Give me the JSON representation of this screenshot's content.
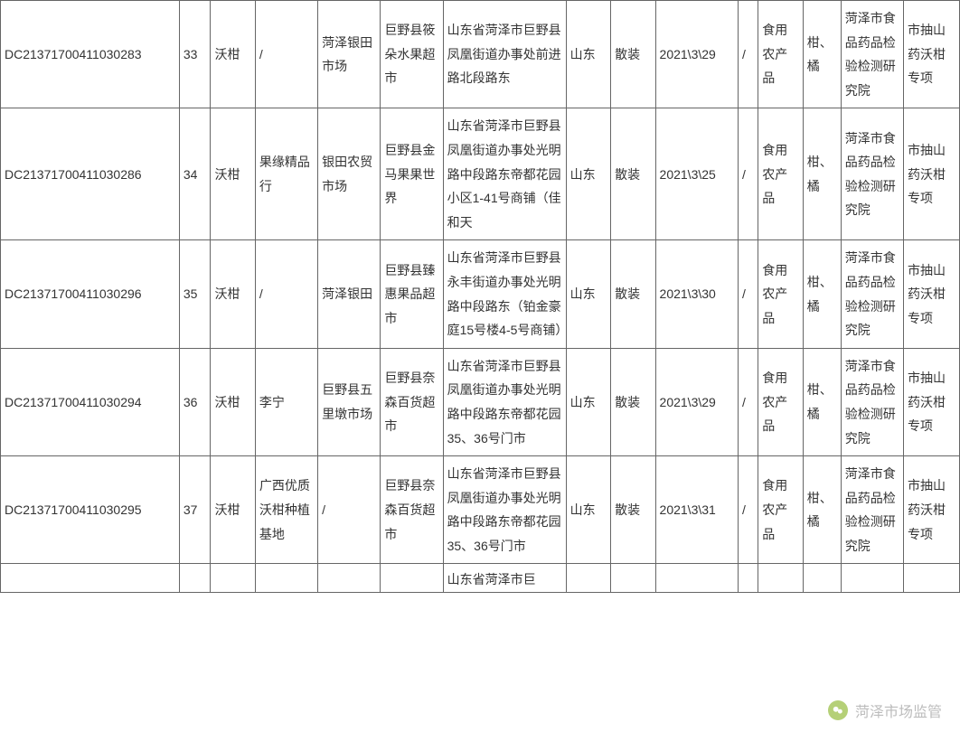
{
  "columns": [
    {
      "class": "col-0"
    },
    {
      "class": "col-1"
    },
    {
      "class": "col-2"
    },
    {
      "class": "col-3"
    },
    {
      "class": "col-4"
    },
    {
      "class": "col-5"
    },
    {
      "class": "col-6"
    },
    {
      "class": "col-7"
    },
    {
      "class": "col-8"
    },
    {
      "class": "col-9"
    },
    {
      "class": "col-10"
    },
    {
      "class": "col-11"
    },
    {
      "class": "col-12"
    },
    {
      "class": "col-13"
    },
    {
      "class": "col-14"
    }
  ],
  "rows": [
    {
      "id": "DC21371700411030283",
      "seq": "33",
      "product": "沃柑",
      "supplier": "/",
      "market": "菏泽银田市场",
      "store": "巨野县筱朵水果超市",
      "address": "山东省菏泽市巨野县凤凰街道办事处前进路北段路东",
      "province": "山东",
      "pack": "散装",
      "date": "2021\\3\\29",
      "spec": "/",
      "category": "食用农产品",
      "sub": "柑、橘",
      "inspect": "菏泽市食品药品检验检测研究院",
      "project": "市抽山药沃柑专项"
    },
    {
      "id": "DC21371700411030286",
      "seq": "34",
      "product": "沃柑",
      "supplier": "果缘精品行",
      "market": "银田农贸市场",
      "store": "巨野县金马果果世界",
      "address": "山东省菏泽市巨野县凤凰街道办事处光明路中段路东帝都花园小区1-41号商铺（佳和天",
      "province": "山东",
      "pack": "散装",
      "date": "2021\\3\\25",
      "spec": "/",
      "category": "食用农产品",
      "sub": "柑、橘",
      "inspect": "菏泽市食品药品检验检测研究院",
      "project": "市抽山药沃柑专项"
    },
    {
      "id": "DC21371700411030296",
      "seq": "35",
      "product": "沃柑",
      "supplier": "/",
      "market": "菏泽银田",
      "store": "巨野县臻惠果品超市",
      "address": "山东省菏泽市巨野县永丰街道办事处光明路中段路东（铂金豪庭15号楼4-5号商铺）",
      "province": "山东",
      "pack": "散装",
      "date": "2021\\3\\30",
      "spec": "/",
      "category": "食用农产品",
      "sub": "柑、橘",
      "inspect": "菏泽市食品药品检验检测研究院",
      "project": "市抽山药沃柑专项"
    },
    {
      "id": "DC21371700411030294",
      "seq": "36",
      "product": "沃柑",
      "supplier": "李宁",
      "market": "巨野县五里墩市场",
      "store": "巨野县奈森百货超市",
      "address": "山东省菏泽市巨野县凤凰街道办事处光明路中段路东帝都花园35、36号门市",
      "province": "山东",
      "pack": "散装",
      "date": "2021\\3\\29",
      "spec": "/",
      "category": "食用农产品",
      "sub": "柑、橘",
      "inspect": "菏泽市食品药品检验检测研究院",
      "project": "市抽山药沃柑专项"
    },
    {
      "id": "DC21371700411030295",
      "seq": "37",
      "product": "沃柑",
      "supplier": "广西优质沃柑种植基地",
      "market": "/",
      "store": "巨野县奈森百货超市",
      "address": "山东省菏泽市巨野县凤凰街道办事处光明路中段路东帝都花园35、36号门市",
      "province": "山东",
      "pack": "散装",
      "date": "2021\\3\\31",
      "spec": "/",
      "category": "食用农产品",
      "sub": "柑、橘",
      "inspect": "菏泽市食品药品检验检测研究院",
      "project": "市抽山药沃柑专项"
    }
  ],
  "partialRow": {
    "address": "山东省菏泽市巨"
  },
  "watermark": {
    "text": "菏泽市场监管"
  }
}
